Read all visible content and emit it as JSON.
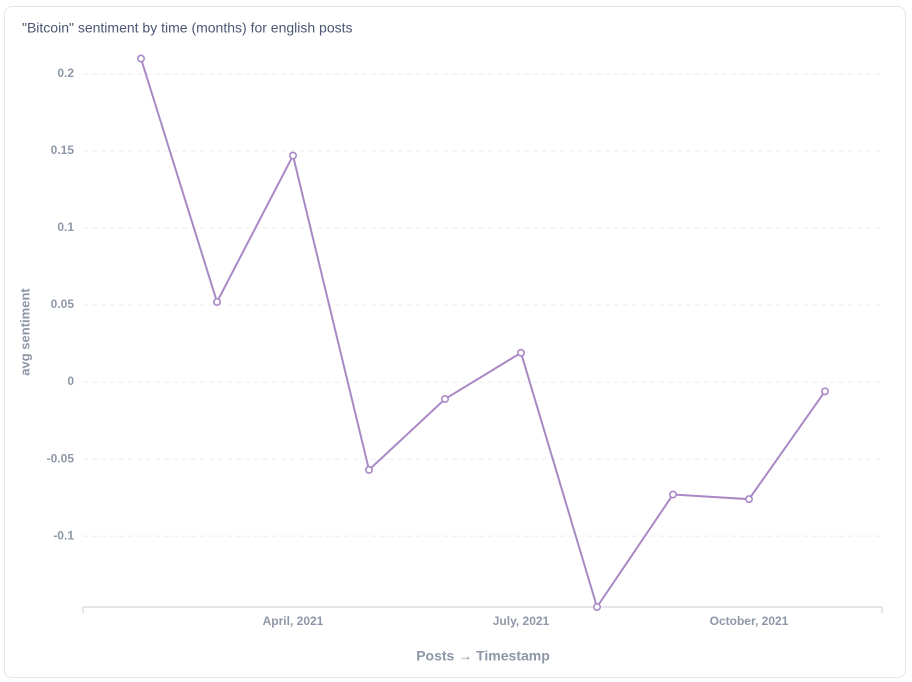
{
  "chart_data": {
    "type": "line",
    "title": "\"Bitcoin\" sentiment by time (months) for english posts",
    "x_label": "Posts → Timestamp",
    "y_label": "avg sentiment",
    "categories": [
      null,
      null,
      "April, 2021",
      null,
      null,
      "July, 2021",
      null,
      null,
      "October, 2021",
      null
    ],
    "series": [
      {
        "name": "avg sentiment",
        "color": "#a989c5",
        "values": [
          0.21,
          0.052,
          0.147,
          -0.057,
          -0.011,
          0.019,
          -0.146,
          -0.073,
          -0.076,
          -0.006
        ]
      }
    ],
    "ylim": [
      -0.146,
      0.211
    ],
    "yticks": [
      -0.1,
      -0.05,
      0,
      0.05,
      0.1,
      0.15,
      0.2
    ],
    "grid": true
  }
}
